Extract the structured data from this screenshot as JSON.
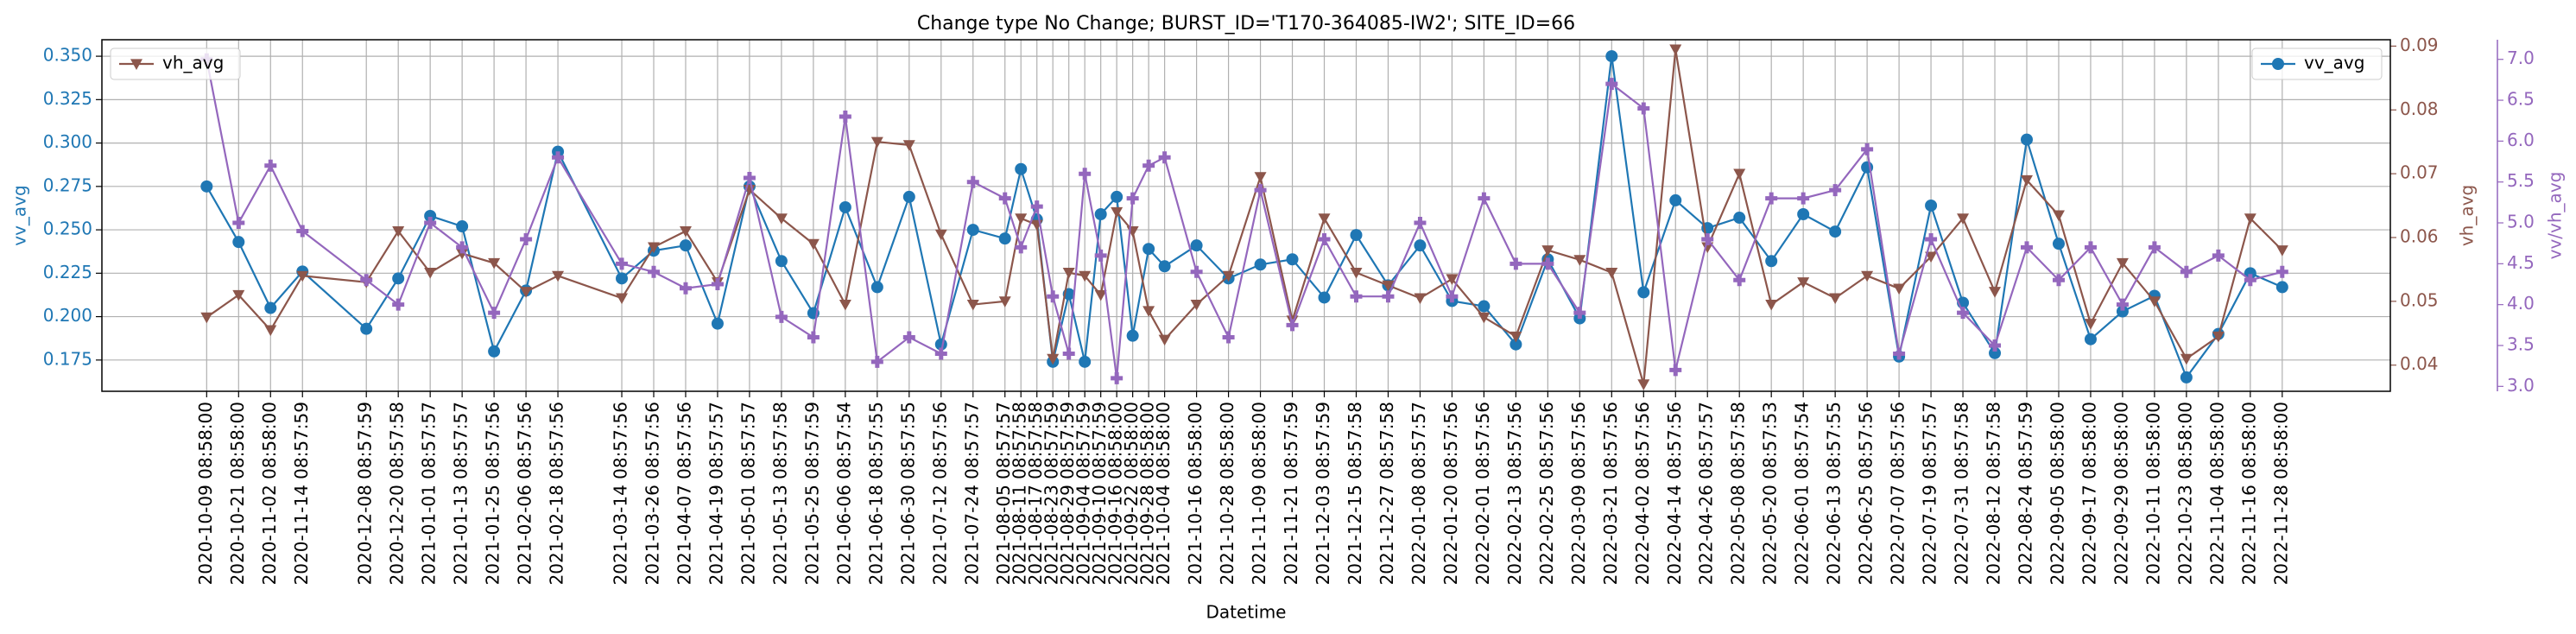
{
  "chart_data": {
    "type": "line",
    "title": "Change type No Change; BURST_ID='T170-364085-IW2'; SITE_ID=66",
    "xlabel": "Datetime",
    "ylabel": "vv_avg",
    "y2label": "vh_avg",
    "y3label": "vv/vh_avg",
    "x": [
      "2020-10-09 08:58:00",
      "2020-10-21 08:58:00",
      "2020-11-02 08:58:00",
      "2020-11-14 08:57:59",
      "2020-12-08 08:57:59",
      "2020-12-20 08:57:58",
      "2021-01-01 08:57:57",
      "2021-01-13 08:57:57",
      "2021-01-25 08:57:56",
      "2021-02-06 08:57:56",
      "2021-02-18 08:57:56",
      "2021-03-14 08:57:56",
      "2021-03-26 08:57:56",
      "2021-04-07 08:57:56",
      "2021-04-19 08:57:57",
      "2021-05-01 08:57:57",
      "2021-05-13 08:57:58",
      "2021-05-25 08:57:59",
      "2021-06-06 08:57:54",
      "2021-06-18 08:57:55",
      "2021-06-30 08:57:55",
      "2021-07-12 08:57:56",
      "2021-07-24 08:57:57",
      "2021-08-05 08:57:57",
      "2021-08-11 08:57:58",
      "2021-08-17 08:57:58",
      "2021-08-23 08:57:59",
      "2021-08-29 08:57:59",
      "2021-09-04 08:57:59",
      "2021-09-10 08:57:59",
      "2021-09-16 08:58:00",
      "2021-09-22 08:58:00",
      "2021-09-28 08:58:00",
      "2021-10-04 08:58:00",
      "2021-10-16 08:58:00",
      "2021-10-28 08:58:00",
      "2021-11-09 08:58:00",
      "2021-11-21 08:57:59",
      "2021-12-03 08:57:59",
      "2021-12-15 08:57:58",
      "2021-12-27 08:57:58",
      "2022-01-08 08:57:57",
      "2022-01-20 08:57:56",
      "2022-02-01 08:57:56",
      "2022-02-13 08:57:56",
      "2022-02-25 08:57:56",
      "2022-03-09 08:57:56",
      "2022-03-21 08:57:56",
      "2022-04-02 08:57:56",
      "2022-04-14 08:57:56",
      "2022-04-26 08:57:57",
      "2022-05-08 08:57:58",
      "2022-05-20 08:57:53",
      "2022-06-01 08:57:54",
      "2022-06-13 08:57:55",
      "2022-06-25 08:57:56",
      "2022-07-07 08:57:56",
      "2022-07-19 08:57:57",
      "2022-07-31 08:57:58",
      "2022-08-12 08:57:58",
      "2022-08-24 08:57:59",
      "2022-09-05 08:58:00",
      "2022-09-17 08:58:00",
      "2022-09-29 08:58:00",
      "2022-10-11 08:58:00",
      "2022-10-23 08:58:00",
      "2022-11-04 08:58:00",
      "2022-11-16 08:58:00",
      "2022-11-28 08:58:00"
    ],
    "xlim": [
      "2020-08-31",
      "2023-01-08"
    ],
    "ylim": [
      0.157,
      0.3595
    ],
    "yticks": [
      0.175,
      {
        "value": 0.2,
        "label": "0.200"
      },
      0.225,
      {
        "value": 0.25,
        "label": "0.250"
      },
      0.275,
      {
        "value": 0.3,
        "label": "0.300"
      },
      0.325,
      {
        "value": 0.35,
        "label": "0.350"
      }
    ],
    "y2lim": [
      0.0359,
      0.091
    ],
    "y2ticks": [
      0.04,
      0.05,
      0.06,
      0.07,
      0.08,
      0.09
    ],
    "y3lim": [
      2.94,
      7.24
    ],
    "y3ticks": [
      {
        "value": 3,
        "label": "3.0"
      },
      3.5,
      {
        "value": 4,
        "label": "4.0"
      },
      4.5,
      {
        "value": 5,
        "label": "5.0"
      },
      5.5,
      {
        "value": 6,
        "label": "6.0"
      },
      6.5,
      {
        "value": 7,
        "label": "7.0"
      }
    ],
    "grid": true,
    "series": [
      {
        "name": "vv_avg",
        "color": "#1f77b4",
        "marker": "circle",
        "axis": "y",
        "legend": "upper right",
        "values": [
          0.275,
          0.243,
          0.205,
          0.226,
          0.193,
          0.222,
          0.258,
          0.252,
          0.18,
          0.215,
          0.295,
          0.222,
          0.238,
          0.241,
          0.196,
          0.275,
          0.232,
          0.202,
          0.263,
          0.217,
          0.269,
          0.184,
          0.25,
          0.245,
          0.285,
          0.256,
          0.174,
          0.213,
          0.174,
          0.259,
          0.269,
          0.189,
          0.239,
          0.229,
          0.241,
          0.222,
          0.23,
          0.233,
          0.211,
          0.247,
          0.218,
          0.241,
          0.209,
          0.206,
          0.184,
          0.233,
          0.199,
          0.35,
          0.214,
          0.267,
          0.251,
          0.257,
          0.232,
          0.259,
          0.249,
          0.286,
          0.177,
          0.264,
          0.208,
          0.179,
          0.302,
          0.242,
          0.187,
          0.203,
          0.212,
          0.165,
          0.19,
          0.225,
          0.217
        ]
      },
      {
        "name": "vh_avg",
        "color": "#8c564b",
        "marker": "triangle-down",
        "axis": "y2",
        "legend": "upper left",
        "values": [
          0.0475,
          0.051,
          0.0455,
          0.054,
          0.053,
          0.061,
          0.0545,
          0.0575,
          0.056,
          0.0515,
          0.054,
          0.0505,
          0.0585,
          0.061,
          0.053,
          0.0675,
          0.063,
          0.059,
          0.0495,
          0.075,
          0.0745,
          0.0605,
          0.0495,
          0.05,
          0.063,
          0.062,
          0.041,
          0.0545,
          0.054,
          0.051,
          0.064,
          0.061,
          0.0485,
          0.044,
          0.0495,
          0.054,
          0.0695,
          0.047,
          0.063,
          0.0545,
          0.0525,
          0.0505,
          0.0535,
          0.0475,
          0.0445,
          0.058,
          0.0565,
          0.0545,
          0.037,
          0.0895,
          0.0585,
          0.07,
          0.0495,
          0.053,
          0.0505,
          0.054,
          0.052,
          0.057,
          0.063,
          0.0515,
          0.069,
          0.0635,
          0.0465,
          0.056,
          0.05,
          0.041,
          0.0445,
          0.063,
          0.058
        ]
      },
      {
        "color": "#9467bd",
        "marker": "plus",
        "axis": "y3",
        "values": [
          7.0,
          5.0,
          5.7,
          4.9,
          4.3,
          4.0,
          5.0,
          4.7,
          3.9,
          4.8,
          5.8,
          4.5,
          4.4,
          4.2,
          4.25,
          5.55,
          3.85,
          3.6,
          6.3,
          3.3,
          3.6,
          3.4,
          5.5,
          5.3,
          4.7,
          5.2,
          4.1,
          3.4,
          5.6,
          4.6,
          3.1,
          5.3,
          5.7,
          5.8,
          4.4,
          3.6,
          5.4,
          3.75,
          4.8,
          4.1,
          4.1,
          5.0,
          4.1,
          5.3,
          4.5,
          4.5,
          3.9,
          6.7,
          6.4,
          3.2,
          4.8,
          4.3,
          5.3,
          5.3,
          5.4,
          5.9,
          3.4,
          4.8,
          3.9,
          3.5,
          4.7,
          4.3,
          4.7,
          4.0,
          4.7,
          4.4,
          4.6,
          4.3,
          4.4
        ]
      }
    ]
  }
}
